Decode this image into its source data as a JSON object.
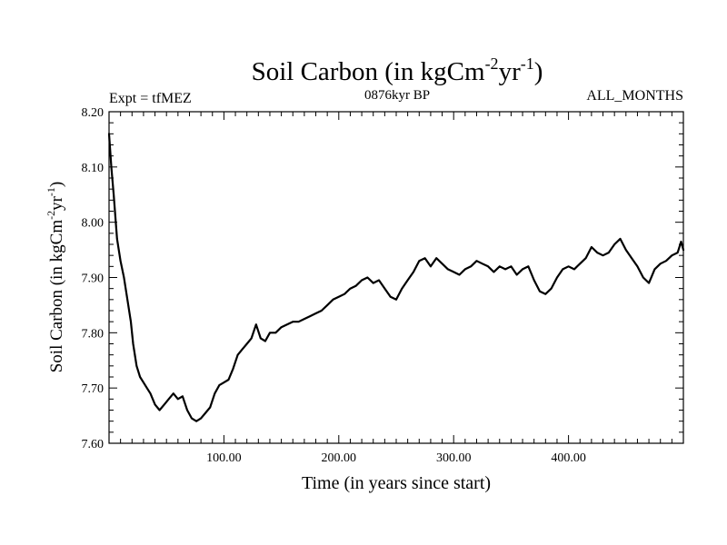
{
  "chart_data": {
    "type": "line",
    "title_main": "Soil Carbon (in kgCm",
    "title_sup1": "-2",
    "title_mid": "yr",
    "title_sup2": "-1",
    "title_end": ")",
    "experiment": "Expt = tfMEZ",
    "period": "0876kyr BP",
    "months": "ALL_MONTHS",
    "xlabel": "Time (in years since start)",
    "ylabel_main": "Soil Carbon (in kgCm",
    "ylabel_sup1": "-2",
    "ylabel_mid": "yr",
    "ylabel_sup2": "-1",
    "ylabel_end": ")",
    "xlim": [
      0,
      500
    ],
    "ylim": [
      7.6,
      8.2
    ],
    "x_ticks": [
      {
        "value": 100,
        "label": "100.00"
      },
      {
        "value": 200,
        "label": "200.00"
      },
      {
        "value": 300,
        "label": "300.00"
      },
      {
        "value": 400,
        "label": "400.00"
      }
    ],
    "y_ticks": [
      {
        "value": 7.6,
        "label": "7.60"
      },
      {
        "value": 7.7,
        "label": "7.70"
      },
      {
        "value": 7.8,
        "label": "7.80"
      },
      {
        "value": 7.9,
        "label": "7.90"
      },
      {
        "value": 8.0,
        "label": "8.00"
      },
      {
        "value": 8.1,
        "label": "8.10"
      },
      {
        "value": 8.2,
        "label": "8.20"
      }
    ],
    "x_minor_step": 10,
    "y_minor_step": 0.02,
    "series": [
      {
        "name": "Soil Carbon",
        "color": "#000000",
        "points": [
          [
            0,
            8.16
          ],
          [
            2,
            8.1
          ],
          [
            4,
            8.05
          ],
          [
            7,
            7.97
          ],
          [
            10,
            7.93
          ],
          [
            13,
            7.9
          ],
          [
            16,
            7.86
          ],
          [
            19,
            7.82
          ],
          [
            21,
            7.78
          ],
          [
            24,
            7.74
          ],
          [
            27,
            7.72
          ],
          [
            30,
            7.71
          ],
          [
            33,
            7.7
          ],
          [
            36,
            7.69
          ],
          [
            40,
            7.67
          ],
          [
            44,
            7.66
          ],
          [
            48,
            7.67
          ],
          [
            52,
            7.68
          ],
          [
            56,
            7.69
          ],
          [
            60,
            7.68
          ],
          [
            64,
            7.685
          ],
          [
            68,
            7.66
          ],
          [
            72,
            7.645
          ],
          [
            76,
            7.64
          ],
          [
            80,
            7.645
          ],
          [
            84,
            7.655
          ],
          [
            88,
            7.665
          ],
          [
            92,
            7.69
          ],
          [
            96,
            7.705
          ],
          [
            100,
            7.71
          ],
          [
            104,
            7.715
          ],
          [
            108,
            7.735
          ],
          [
            112,
            7.76
          ],
          [
            116,
            7.77
          ],
          [
            120,
            7.78
          ],
          [
            124,
            7.79
          ],
          [
            128,
            7.815
          ],
          [
            132,
            7.79
          ],
          [
            136,
            7.785
          ],
          [
            140,
            7.8
          ],
          [
            145,
            7.8
          ],
          [
            150,
            7.81
          ],
          [
            155,
            7.815
          ],
          [
            160,
            7.82
          ],
          [
            165,
            7.82
          ],
          [
            170,
            7.825
          ],
          [
            175,
            7.83
          ],
          [
            180,
            7.835
          ],
          [
            185,
            7.84
          ],
          [
            190,
            7.85
          ],
          [
            195,
            7.86
          ],
          [
            200,
            7.865
          ],
          [
            205,
            7.87
          ],
          [
            210,
            7.88
          ],
          [
            215,
            7.885
          ],
          [
            220,
            7.895
          ],
          [
            225,
            7.9
          ],
          [
            230,
            7.89
          ],
          [
            235,
            7.895
          ],
          [
            240,
            7.88
          ],
          [
            245,
            7.865
          ],
          [
            250,
            7.86
          ],
          [
            255,
            7.88
          ],
          [
            260,
            7.895
          ],
          [
            265,
            7.91
          ],
          [
            270,
            7.93
          ],
          [
            275,
            7.935
          ],
          [
            280,
            7.92
          ],
          [
            285,
            7.935
          ],
          [
            290,
            7.925
          ],
          [
            295,
            7.915
          ],
          [
            300,
            7.91
          ],
          [
            305,
            7.905
          ],
          [
            310,
            7.915
          ],
          [
            315,
            7.92
          ],
          [
            320,
            7.93
          ],
          [
            325,
            7.925
          ],
          [
            330,
            7.92
          ],
          [
            335,
            7.91
          ],
          [
            340,
            7.92
          ],
          [
            345,
            7.915
          ],
          [
            350,
            7.92
          ],
          [
            355,
            7.905
          ],
          [
            360,
            7.915
          ],
          [
            365,
            7.92
          ],
          [
            370,
            7.895
          ],
          [
            375,
            7.875
          ],
          [
            380,
            7.87
          ],
          [
            385,
            7.88
          ],
          [
            390,
            7.9
          ],
          [
            395,
            7.915
          ],
          [
            400,
            7.92
          ],
          [
            405,
            7.915
          ],
          [
            410,
            7.925
          ],
          [
            415,
            7.935
          ],
          [
            420,
            7.955
          ],
          [
            425,
            7.945
          ],
          [
            430,
            7.94
          ],
          [
            435,
            7.945
          ],
          [
            440,
            7.96
          ],
          [
            445,
            7.97
          ],
          [
            450,
            7.95
          ],
          [
            455,
            7.935
          ],
          [
            460,
            7.92
          ],
          [
            465,
            7.9
          ],
          [
            470,
            7.89
          ],
          [
            475,
            7.915
          ],
          [
            480,
            7.925
          ],
          [
            485,
            7.93
          ],
          [
            490,
            7.94
          ],
          [
            495,
            7.945
          ],
          [
            498,
            7.965
          ],
          [
            500,
            7.95
          ]
        ]
      }
    ]
  }
}
